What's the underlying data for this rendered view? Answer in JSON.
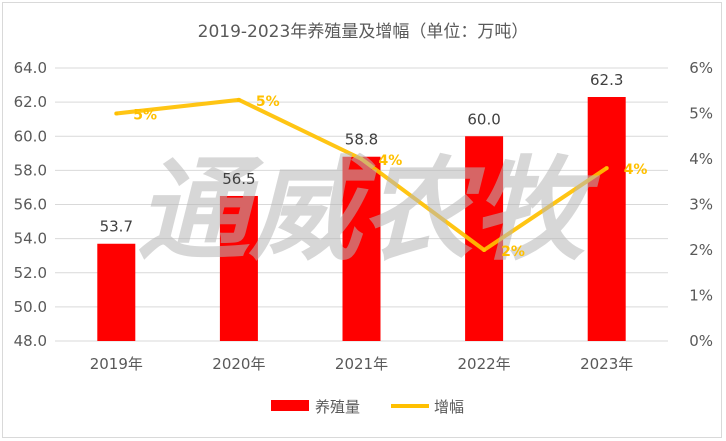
{
  "chart_data": {
    "type": "bar",
    "title": "2019-2023年养殖量及增幅（单位：万吨）",
    "categories": [
      "2019年",
      "2020年",
      "2021年",
      "2022年",
      "2023年"
    ],
    "series": [
      {
        "name": "养殖量",
        "type": "bar",
        "axis": "left",
        "color": "#ff0000",
        "values": [
          53.7,
          56.5,
          58.8,
          60.0,
          62.3
        ],
        "labels": [
          "53.7",
          "56.5",
          "58.8",
          "60.0",
          "62.3"
        ]
      },
      {
        "name": "增幅",
        "type": "line",
        "axis": "right",
        "color": "#ffc000",
        "values": [
          5.0,
          5.3,
          4.0,
          2.0,
          3.8
        ],
        "labels": [
          "5%",
          "5%",
          "4%",
          "2%",
          "4%"
        ]
      }
    ],
    "y_left": {
      "min": 48,
      "max": 64,
      "step": 2,
      "tick_labels": [
        "48.0",
        "50.0",
        "52.0",
        "54.0",
        "56.0",
        "58.0",
        "60.0",
        "62.0",
        "64.0"
      ]
    },
    "y_right": {
      "min": 0,
      "max": 6,
      "step": 1,
      "tick_labels": [
        "0%",
        "1%",
        "2%",
        "3%",
        "4%",
        "5%",
        "6%"
      ]
    },
    "grid": true,
    "legend": "bottom",
    "watermark": "通威农牧"
  }
}
